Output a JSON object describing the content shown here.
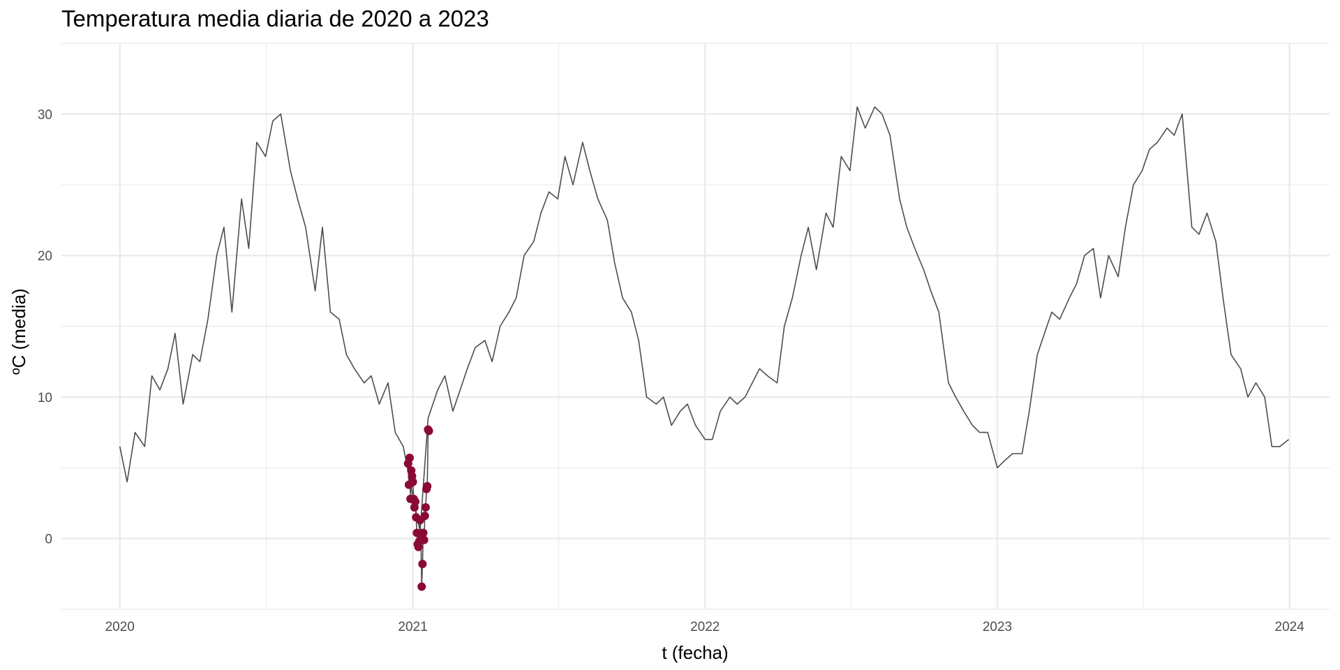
{
  "chart_data": {
    "type": "line",
    "title": "Temperatura media diaria de 2020 a 2023",
    "xlabel": "t (fecha)",
    "ylabel": "ºC (media)",
    "x_range": [
      "2019-10-20",
      "2024-02-20"
    ],
    "ylim": [
      -5,
      35
    ],
    "x_ticks": [
      "2020",
      "2021",
      "2022",
      "2023",
      "2024"
    ],
    "y_ticks": [
      "0",
      "10",
      "20",
      "30"
    ],
    "grid": true,
    "legend": "none",
    "colors": {
      "line": "#4d4d4d",
      "highlight": "#8b0a35",
      "grid": "#ebebeb"
    },
    "series": [
      {
        "kind": "line",
        "x": [
          "2020-01-01",
          "2020-01-10",
          "2020-01-20",
          "2020-02-01",
          "2020-02-10",
          "2020-02-20",
          "2020-03-01",
          "2020-03-10",
          "2020-03-20",
          "2020-04-01",
          "2020-04-10",
          "2020-04-20",
          "2020-05-01",
          "2020-05-10",
          "2020-05-20",
          "2020-06-01",
          "2020-06-10",
          "2020-06-20",
          "2020-07-01",
          "2020-07-10",
          "2020-07-20",
          "2020-08-01",
          "2020-08-10",
          "2020-08-20",
          "2020-09-01",
          "2020-09-10",
          "2020-09-20",
          "2020-10-01",
          "2020-10-10",
          "2020-10-20",
          "2020-11-01",
          "2020-11-10",
          "2020-11-20",
          "2020-12-01",
          "2020-12-10",
          "2020-12-20",
          "2021-01-01",
          "2021-01-10",
          "2021-01-20",
          "2021-02-01",
          "2021-02-10",
          "2021-02-20",
          "2021-03-01",
          "2021-03-10",
          "2021-03-20",
          "2021-04-01",
          "2021-04-10",
          "2021-04-20",
          "2021-05-01",
          "2021-05-10",
          "2021-05-20",
          "2021-06-01",
          "2021-06-10",
          "2021-06-20",
          "2021-07-01",
          "2021-07-10",
          "2021-07-20",
          "2021-08-01",
          "2021-08-10",
          "2021-08-20",
          "2021-09-01",
          "2021-09-10",
          "2021-09-20",
          "2021-10-01",
          "2021-10-10",
          "2021-10-20",
          "2021-11-01",
          "2021-11-10",
          "2021-11-20",
          "2021-12-01",
          "2021-12-10",
          "2021-12-20",
          "2022-01-01",
          "2022-01-10",
          "2022-01-20",
          "2022-02-01",
          "2022-02-10",
          "2022-02-20",
          "2022-03-01",
          "2022-03-10",
          "2022-03-20",
          "2022-04-01",
          "2022-04-10",
          "2022-04-20",
          "2022-05-01",
          "2022-05-10",
          "2022-05-20",
          "2022-06-01",
          "2022-06-10",
          "2022-06-20",
          "2022-07-01",
          "2022-07-10",
          "2022-07-20",
          "2022-08-01",
          "2022-08-10",
          "2022-08-20",
          "2022-09-01",
          "2022-09-10",
          "2022-09-20",
          "2022-10-01",
          "2022-10-10",
          "2022-10-20",
          "2022-11-01",
          "2022-11-10",
          "2022-11-20",
          "2022-12-01",
          "2022-12-10",
          "2022-12-20",
          "2023-01-01",
          "2023-01-10",
          "2023-01-20",
          "2023-02-01",
          "2023-02-10",
          "2023-02-20",
          "2023-03-01",
          "2023-03-10",
          "2023-03-20",
          "2023-04-01",
          "2023-04-10",
          "2023-04-20",
          "2023-05-01",
          "2023-05-10",
          "2023-05-20",
          "2023-06-01",
          "2023-06-10",
          "2023-06-20",
          "2023-07-01",
          "2023-07-10",
          "2023-07-20",
          "2023-08-01",
          "2023-08-10",
          "2023-08-20",
          "2023-09-01",
          "2023-09-10",
          "2023-09-20",
          "2023-10-01",
          "2023-10-10",
          "2023-10-20",
          "2023-11-01",
          "2023-11-10",
          "2023-11-20",
          "2023-12-01",
          "2023-12-10",
          "2023-12-20",
          "2023-12-31"
        ],
        "y": [
          6.5,
          4.0,
          7.5,
          6.5,
          11.5,
          10.5,
          12.0,
          14.5,
          9.5,
          13.0,
          12.5,
          15.5,
          20.0,
          22.0,
          16.0,
          24.0,
          20.5,
          28.0,
          27.0,
          29.5,
          30.0,
          26.0,
          24.0,
          22.0,
          17.5,
          22.0,
          16.0,
          15.5,
          13.0,
          12.0,
          11.0,
          11.5,
          9.5,
          11.0,
          7.5,
          6.5,
          3.0,
          0.5,
          8.5,
          10.5,
          11.5,
          9.0,
          10.5,
          12.0,
          13.5,
          14.0,
          12.5,
          15.0,
          16.0,
          17.0,
          20.0,
          21.0,
          23.0,
          24.5,
          24.0,
          27.0,
          25.0,
          28.0,
          26.0,
          24.0,
          22.5,
          19.5,
          17.0,
          16.0,
          14.0,
          10.0,
          9.5,
          10.0,
          8.0,
          9.0,
          9.5,
          8.0,
          7.0,
          7.0,
          9.0,
          10.0,
          9.5,
          10.0,
          11.0,
          12.0,
          11.5,
          11.0,
          15.0,
          17.0,
          20.0,
          22.0,
          19.0,
          23.0,
          22.0,
          27.0,
          26.0,
          30.5,
          29.0,
          30.5,
          30.0,
          28.5,
          24.0,
          22.0,
          20.5,
          19.0,
          17.5,
          16.0,
          11.0,
          10.0,
          9.0,
          8.0,
          7.5,
          7.5,
          5.0,
          5.5,
          6.0,
          6.0,
          9.0,
          13.0,
          14.5,
          16.0,
          15.5,
          17.0,
          18.0,
          20.0,
          20.5,
          17.0,
          20.0,
          18.5,
          22.0,
          25.0,
          26.0,
          27.5,
          28.0,
          29.0,
          28.5,
          30.0,
          22.0,
          21.5,
          23.0,
          21.0,
          17.0,
          13.0,
          12.0,
          10.0,
          11.0,
          10.0,
          6.5,
          6.5,
          7.0
        ]
      },
      {
        "kind": "points",
        "x": [
          "2020-12-26",
          "2020-12-27",
          "2020-12-28",
          "2020-12-29",
          "2020-12-30",
          "2020-12-31",
          "2021-01-01",
          "2021-01-02",
          "2021-01-03",
          "2021-01-04",
          "2021-01-05",
          "2021-01-06",
          "2021-01-07",
          "2021-01-08",
          "2021-01-09",
          "2021-01-10",
          "2021-01-11",
          "2021-01-12",
          "2021-01-13",
          "2021-01-14",
          "2021-01-15",
          "2021-01-16",
          "2021-01-17",
          "2021-01-18",
          "2021-01-19",
          "2021-01-20",
          "2021-01-21"
        ],
        "y": [
          5.3,
          3.8,
          5.7,
          2.8,
          4.8,
          4.4,
          4.0,
          2.8,
          2.2,
          2.6,
          1.5,
          0.4,
          -0.4,
          -0.6,
          -0.2,
          1.3,
          0.3,
          -3.4,
          -1.8,
          0.4,
          -0.1,
          1.6,
          2.2,
          3.5,
          3.7,
          7.7,
          7.6
        ]
      }
    ]
  }
}
